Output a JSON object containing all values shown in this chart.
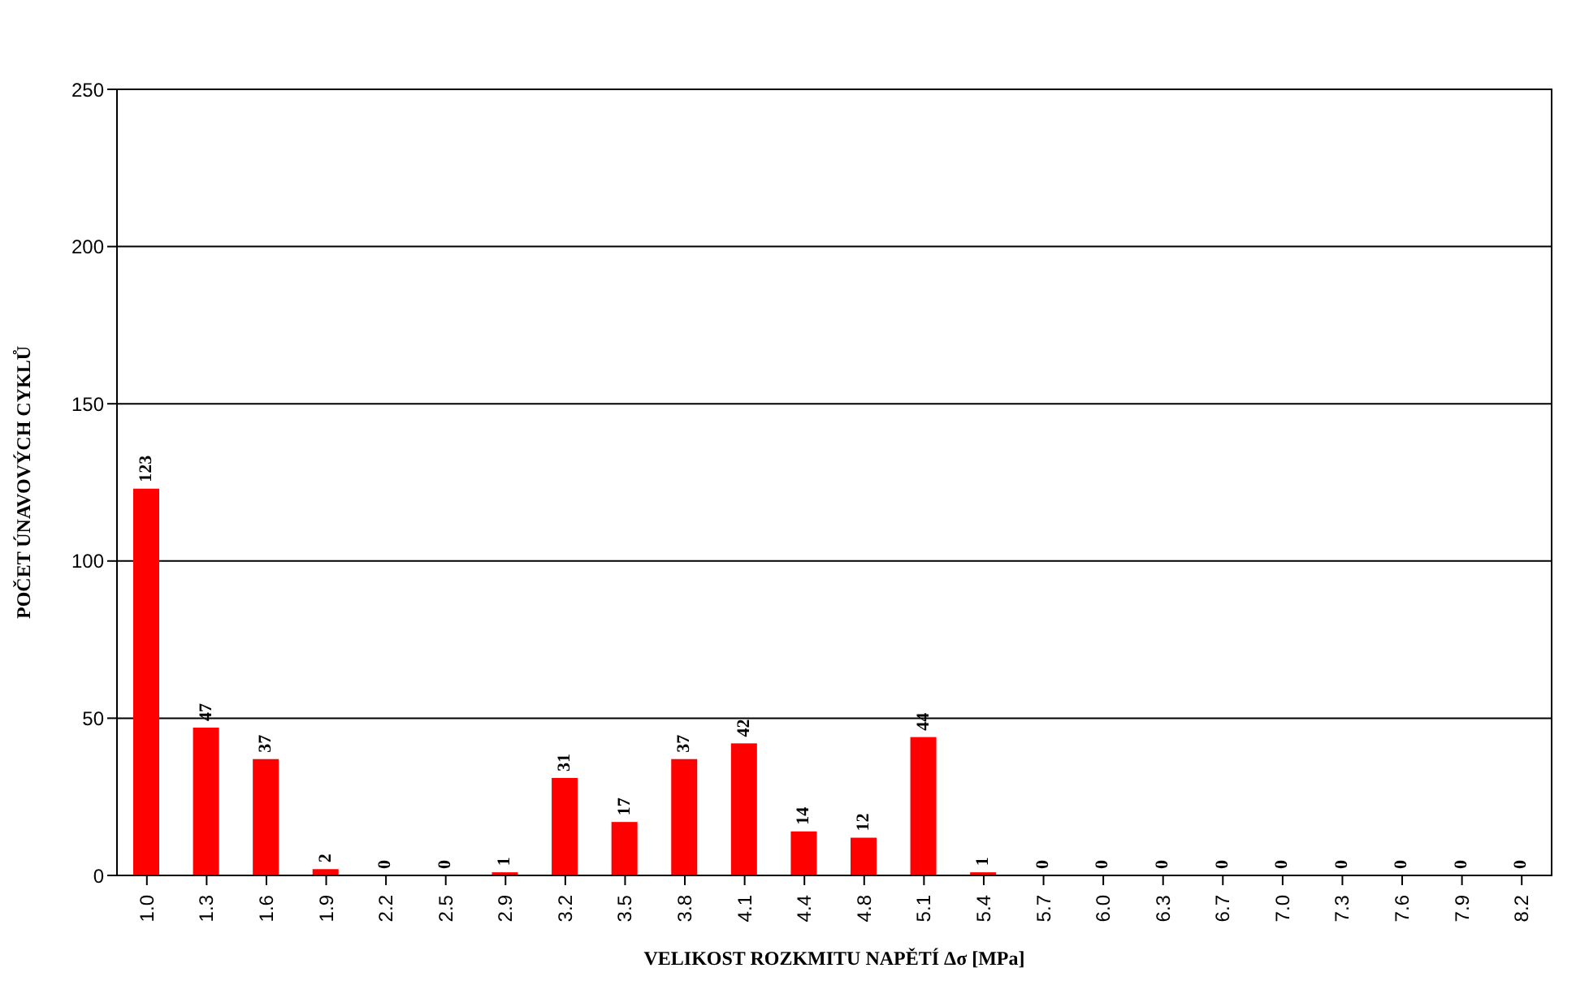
{
  "chart_data": {
    "type": "bar",
    "xlabel": "VELIKOST ROZKMITU NAPĚTÍ Δσ [MPa]",
    "ylabel": "POČET ÚNAVOVÝCH CYKLŮ",
    "categories": [
      "1.0",
      "1.3",
      "1.6",
      "1.9",
      "2.2",
      "2.5",
      "2.9",
      "3.2",
      "3.5",
      "3.8",
      "4.1",
      "4.4",
      "4.8",
      "5.1",
      "5.4",
      "5.7",
      "6.0",
      "6.3",
      "6.7",
      "7.0",
      "7.3",
      "7.6",
      "7.9",
      "8.2"
    ],
    "values": [
      123,
      47,
      37,
      2,
      0,
      0,
      1,
      31,
      17,
      37,
      42,
      14,
      12,
      44,
      1,
      0,
      0,
      0,
      0,
      0,
      0,
      0,
      0,
      0
    ],
    "color": "#ff0000",
    "ylim": [
      0,
      250
    ],
    "yticks": [
      0,
      50,
      100,
      150,
      200,
      250
    ],
    "grid": "y",
    "data_labels": true
  }
}
